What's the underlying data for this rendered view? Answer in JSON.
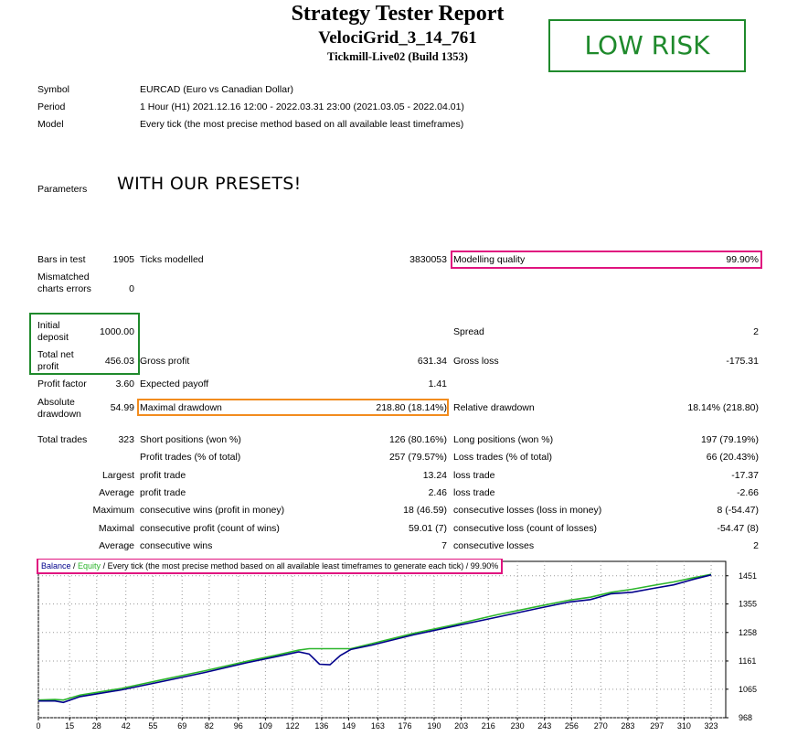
{
  "report": {
    "title": "Strategy Tester Report",
    "subtitle": "VelociGrid_3_14_761",
    "server": "Tickmill-Live02 (Build 1353)"
  },
  "annotations": {
    "low_risk": "LOW RISK",
    "presets": "WITH OUR PRESETS!"
  },
  "info": {
    "symbol_label": "Symbol",
    "symbol_value": "EURCAD (Euro vs Canadian Dollar)",
    "period_label": "Period",
    "period_value": "1 Hour (H1) 2021.12.16 12:00 - 2022.03.31 23:00 (2021.03.05 - 2022.04.01)",
    "model_label": "Model",
    "model_value": "Every tick (the most precise method based on all available least timeframes)",
    "parameters_label": "Parameters"
  },
  "stats": {
    "bars_label": "Bars in test",
    "bars_value": "1905",
    "ticks_label": "Ticks modelled",
    "ticks_value": "3830053",
    "mq_label": "Modelling quality",
    "mq_value": "99.90%",
    "mismatch_label": "Mismatched charts errors",
    "mismatch_value": "0",
    "initial_label": "Initial deposit",
    "initial_value": "1000.00",
    "spread_label": "Spread",
    "spread_value": "2",
    "net_label": "Total net profit",
    "net_value": "456.03",
    "gp_label": "Gross profit",
    "gp_value": "631.34",
    "gl_label": "Gross loss",
    "gl_value": "-175.31",
    "pf_label": "Profit factor",
    "pf_value": "3.60",
    "ep_label": "Expected payoff",
    "ep_value": "1.41",
    "ad_label": "Absolute drawdown",
    "ad_value": "54.99",
    "md_label": "Maximal drawdown",
    "md_value": "218.80 (18.14%)",
    "rd_label": "Relative drawdown",
    "rd_value": "18.14% (218.80)",
    "tt_label": "Total trades",
    "tt_value": "323",
    "sp_label": "Short positions (won %)",
    "sp_value": "126 (80.16%)",
    "lp_label": "Long positions (won %)",
    "lp_value": "197 (79.19%)",
    "pt_label": "Profit trades (% of total)",
    "pt_value": "257 (79.57%)",
    "lt_label": "Loss trades (% of total)",
    "lt_value": "66 (20.43%)",
    "largest": "Largest",
    "profit_trade": "profit trade",
    "largest_pt": "13.24",
    "loss_trade": "loss trade",
    "largest_lt": "-17.37",
    "average": "Average",
    "average_pt": "2.46",
    "average_lt": "-2.66",
    "maximum": "Maximum",
    "mcw_label": "consecutive wins (profit in money)",
    "mcw_value": "18 (46.59)",
    "mcl_label": "consecutive losses (loss in money)",
    "mcl_value": "8 (-54.47)",
    "maximal": "Maximal",
    "mcp_label": "consecutive profit (count of wins)",
    "mcp_value": "59.01 (7)",
    "mcll_label": "consecutive loss (count of losses)",
    "mcll_value": "-54.47 (8)",
    "average2": "Average",
    "acw_label": "consecutive wins",
    "acw_value": "7",
    "acl_label": "consecutive losses",
    "acl_value": "2"
  },
  "chart_data": {
    "type": "line",
    "legend": {
      "balance": "Balance",
      "sep1": " / ",
      "equity": "Equity",
      "rest": " / Every tick (the most precise method based on all available least timeframes to generate each tick) / 99.90%"
    },
    "colors": {
      "balance": "#00008b",
      "equity": "#2bb52b",
      "grid": "#9a9a9a"
    },
    "x_ticks": [
      "0",
      "15",
      "28",
      "42",
      "55",
      "69",
      "82",
      "96",
      "109",
      "122",
      "136",
      "149",
      "163",
      "176",
      "190",
      "203",
      "216",
      "230",
      "243",
      "256",
      "270",
      "283",
      "297",
      "310",
      "323"
    ],
    "y_ticks": [
      "1451",
      "1355",
      "1258",
      "1161",
      "1065",
      "968"
    ],
    "ylim": [
      968,
      1500
    ],
    "xlim": [
      0,
      330
    ],
    "balance_x": [
      0,
      8,
      12,
      20,
      40,
      60,
      80,
      100,
      115,
      125,
      130,
      135,
      140,
      145,
      150,
      160,
      180,
      200,
      220,
      240,
      255,
      265,
      275,
      285,
      295,
      305,
      315,
      323
    ],
    "balance_y": [
      1025,
      1025,
      1020,
      1040,
      1063,
      1092,
      1122,
      1155,
      1177,
      1192,
      1185,
      1150,
      1148,
      1180,
      1200,
      1215,
      1250,
      1280,
      1310,
      1340,
      1362,
      1370,
      1390,
      1395,
      1408,
      1420,
      1440,
      1454
    ],
    "equity_x": [
      0,
      8,
      12,
      20,
      40,
      60,
      80,
      100,
      115,
      125,
      130,
      150,
      160,
      180,
      200,
      220,
      240,
      255,
      265,
      275,
      285,
      295,
      305,
      315,
      323
    ],
    "equity_y": [
      1028,
      1030,
      1028,
      1045,
      1068,
      1098,
      1128,
      1160,
      1182,
      1198,
      1203,
      1203,
      1220,
      1255,
      1285,
      1318,
      1347,
      1368,
      1378,
      1395,
      1405,
      1418,
      1430,
      1445,
      1456
    ]
  }
}
